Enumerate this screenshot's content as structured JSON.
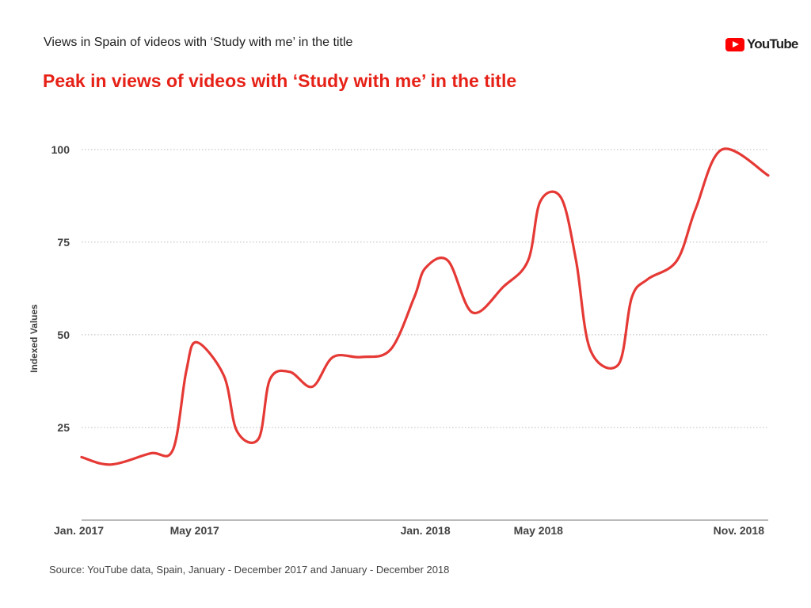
{
  "header": {
    "subtitle": "Views in Spain of videos with ‘Study with me’ in the title",
    "headline": "Peak in views of videos with ‘Study with me’ in the title",
    "brand": "YouTube",
    "brand_color": "#ff0000"
  },
  "footer": {
    "source": "Source: YouTube data, Spain, January - December 2017 and January - December  2018"
  },
  "chart_data": {
    "type": "line",
    "title": "Peak in views of videos with ‘Study with me’ in the title",
    "subtitle": "Views in Spain of videos with ‘Study with me’ in the title",
    "xlabel": "",
    "ylabel": "Indexed Values",
    "xlim": [
      "2017-01-01",
      "2018-12-31"
    ],
    "ylim": [
      0,
      110
    ],
    "yticks": [
      25,
      50,
      75,
      100
    ],
    "xticks": [
      {
        "date": "2017-01-01",
        "label": "Jan. 2017"
      },
      {
        "date": "2017-05-01",
        "label": "May 2017"
      },
      {
        "date": "2018-01-01",
        "label": "Jan. 2018"
      },
      {
        "date": "2018-05-01",
        "label": "May 2018"
      },
      {
        "date": "2018-11-01",
        "label": "Nov. 2018"
      }
    ],
    "grid": "horizontal dotted",
    "line_color": "#e53935",
    "series": [
      {
        "x": [
          "2017-01-01",
          "2017-02-01",
          "2017-03-15",
          "2017-04-08",
          "2017-04-22",
          "2017-05-03",
          "2017-06-01",
          "2017-06-15",
          "2017-07-08",
          "2017-07-20",
          "2017-08-10",
          "2017-09-03",
          "2017-09-25",
          "2017-10-25",
          "2017-11-25",
          "2017-12-20",
          "2018-01-01",
          "2018-01-25",
          "2018-02-20",
          "2018-03-25",
          "2018-04-20",
          "2018-05-03",
          "2018-05-25",
          "2018-06-10",
          "2018-06-25",
          "2018-07-25",
          "2018-08-08",
          "2018-08-25",
          "2018-09-25",
          "2018-10-15",
          "2018-11-12",
          "2018-12-31"
        ],
        "y": [
          17,
          15,
          18,
          19,
          40,
          48,
          39,
          24,
          22,
          38,
          40,
          36,
          44,
          44,
          46,
          60,
          68,
          70,
          56,
          63,
          70,
          86,
          87,
          70,
          46,
          42,
          60,
          65,
          70,
          84,
          100,
          93
        ]
      }
    ]
  }
}
